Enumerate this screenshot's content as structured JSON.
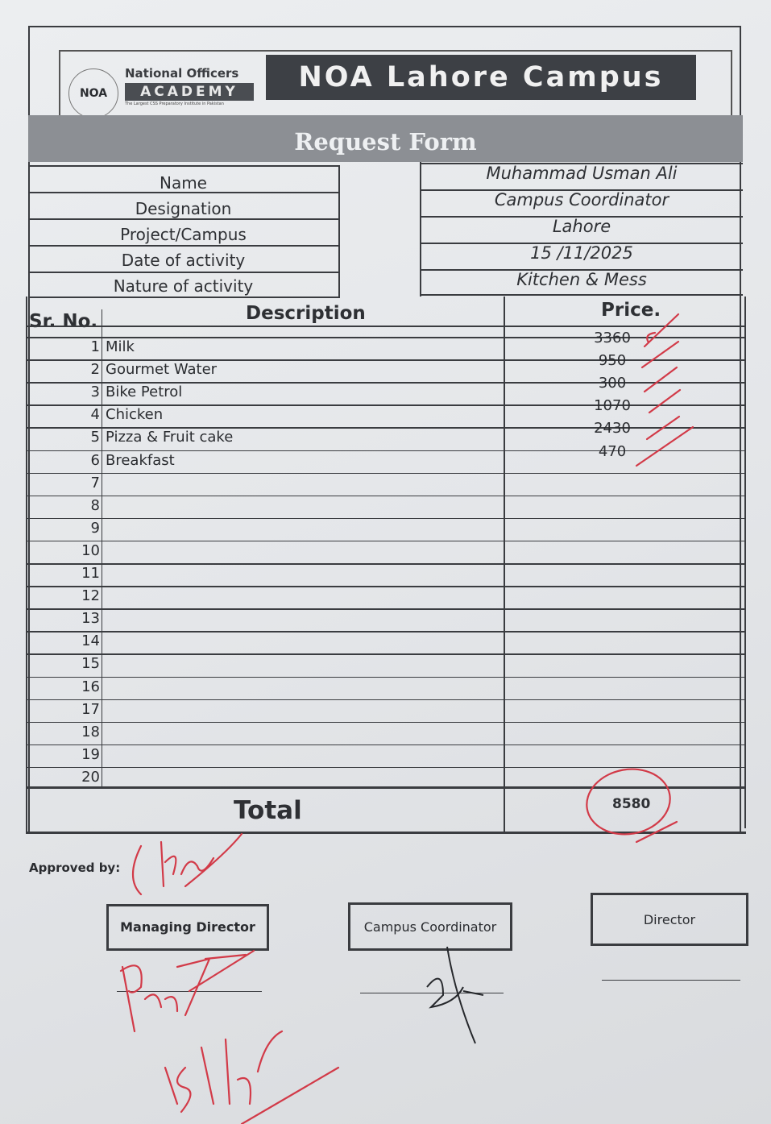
{
  "header": {
    "logo_text": "NOA",
    "org_line1": "National Officers",
    "org_line2": "ACADEMY",
    "tagline": "The Largest CSS Preparatory Institute in Pakistan",
    "campus_title": "NOA Lahore Campus"
  },
  "form_title": "Request Form",
  "info": [
    {
      "label": "Name",
      "value": "Muhammad Usman Ali"
    },
    {
      "label": "Designation",
      "value": "Campus Coordinator"
    },
    {
      "label": "Project/Campus",
      "value": "Lahore"
    },
    {
      "label": "Date of activity",
      "value": "15 /11/2025"
    },
    {
      "label": "Nature of activity",
      "value": "Kitchen & Mess"
    }
  ],
  "table": {
    "headers": {
      "sr": "Sr. No.",
      "description": "Description",
      "price": "Price."
    },
    "rows": [
      {
        "sr": "1",
        "description": "Milk",
        "price": "3360"
      },
      {
        "sr": "2",
        "description": "Gourmet Water",
        "price": "950"
      },
      {
        "sr": "3",
        "description": "Bike Petrol",
        "price": "300"
      },
      {
        "sr": "4",
        "description": "Chicken",
        "price": "1070"
      },
      {
        "sr": "5",
        "description": "Pizza & Fruit cake",
        "price": "2430"
      },
      {
        "sr": "6",
        "description": "Breakfast",
        "price": "470"
      },
      {
        "sr": "7",
        "description": "",
        "price": ""
      },
      {
        "sr": "8",
        "description": "",
        "price": ""
      },
      {
        "sr": "9",
        "description": "",
        "price": ""
      },
      {
        "sr": "10",
        "description": "",
        "price": ""
      },
      {
        "sr": "11",
        "description": "",
        "price": ""
      },
      {
        "sr": "12",
        "description": "",
        "price": ""
      },
      {
        "sr": "13",
        "description": "",
        "price": ""
      },
      {
        "sr": "14",
        "description": "",
        "price": ""
      },
      {
        "sr": "15",
        "description": "",
        "price": ""
      },
      {
        "sr": "16",
        "description": "",
        "price": ""
      },
      {
        "sr": "17",
        "description": "",
        "price": ""
      },
      {
        "sr": "18",
        "description": "",
        "price": ""
      },
      {
        "sr": "19",
        "description": "",
        "price": ""
      },
      {
        "sr": "20",
        "description": "",
        "price": ""
      }
    ],
    "total_label": "Total",
    "total_value": "8580"
  },
  "approval": {
    "approved_by": "Approved by:",
    "boxes": [
      "Managing Director",
      "Campus Coordinator",
      "Director"
    ],
    "handwritten_note": "15/11/25"
  },
  "colors": {
    "ink_red": "#d23a48",
    "print": "#2e3034",
    "band": "#8c8f94"
  }
}
